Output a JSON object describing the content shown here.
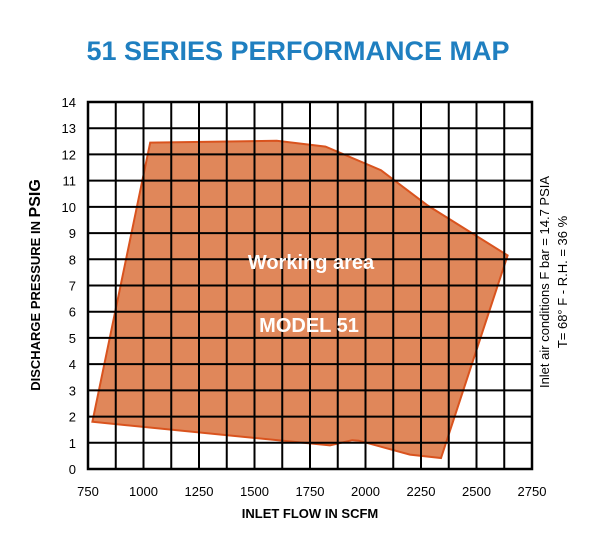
{
  "chart_data": {
    "type": "area",
    "title": "51 SERIES PERFORMANCE MAP",
    "xlabel": "INLET FLOW IN SCFM",
    "ylabel_prefix": "DISCHARGE PRESSURE IN ",
    "ylabel_unit": "PSIG",
    "xlim": [
      750,
      2750
    ],
    "ylim": [
      0,
      14
    ],
    "x_ticks": [
      750,
      1000,
      1250,
      1500,
      1750,
      2000,
      2250,
      2500,
      2750
    ],
    "y_ticks": [
      0,
      1,
      2,
      3,
      4,
      5,
      6,
      7,
      8,
      9,
      10,
      11,
      12,
      13,
      14
    ],
    "grid": true,
    "annotation_title": "Working area",
    "annotation_model": "MODEL 51",
    "conditions_line1": "Inlet air conditions  F bar = 14.7 PSIA",
    "conditions_line2": "T= 68° F - R.H. = 36 %",
    "fill_color": "#e0875a",
    "stroke_color": "#d9531e",
    "title_color": "#1f7fc0",
    "region": [
      {
        "x": 1030,
        "y": 12.45
      },
      {
        "x": 1600,
        "y": 12.52
      },
      {
        "x": 1820,
        "y": 12.3
      },
      {
        "x": 2070,
        "y": 11.4
      },
      {
        "x": 2280,
        "y": 10.05
      },
      {
        "x": 2640,
        "y": 8.15
      },
      {
        "x": 2340,
        "y": 0.42
      },
      {
        "x": 2200,
        "y": 0.55
      },
      {
        "x": 1970,
        "y": 1.08
      },
      {
        "x": 1940,
        "y": 1.1
      },
      {
        "x": 1840,
        "y": 0.9
      },
      {
        "x": 770,
        "y": 1.8
      }
    ]
  }
}
